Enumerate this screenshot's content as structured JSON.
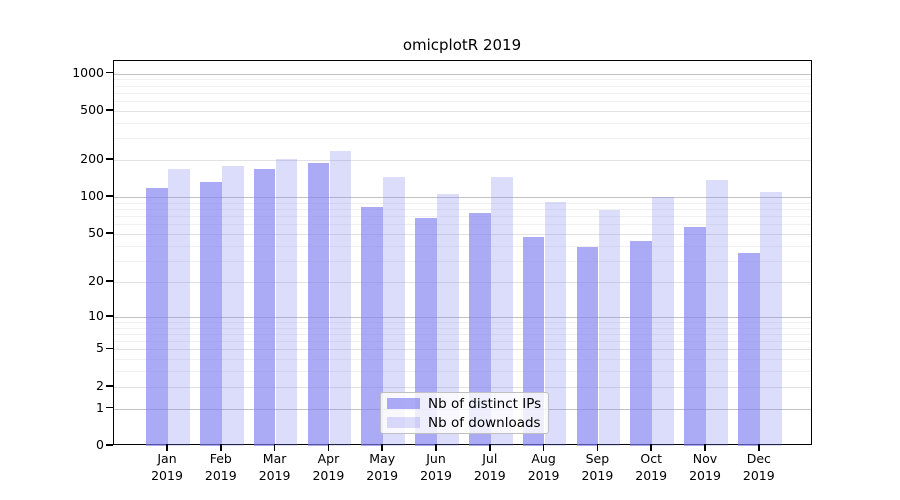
{
  "chart_data": {
    "type": "bar",
    "title": "omicplotR 2019",
    "xlabel": "",
    "ylabel": "",
    "categories": [
      "Jan 2019",
      "Feb 2019",
      "Mar 2019",
      "Apr 2019",
      "May 2019",
      "Jun 2019",
      "Jul 2019",
      "Aug 2019",
      "Sep 2019",
      "Oct 2019",
      "Nov 2019",
      "Dec 2019"
    ],
    "series": [
      {
        "name": "Nb of distinct IPs",
        "color": "#8080F0A8",
        "values": [
          118,
          134,
          168,
          191,
          83,
          68,
          75,
          47,
          39,
          44,
          57,
          35
        ]
      },
      {
        "name": "Nb of downloads",
        "color": "#8080F047",
        "values": [
          168,
          181,
          206,
          239,
          147,
          106,
          146,
          92,
          79,
          101,
          137,
          110
        ]
      }
    ],
    "yscale": "log1p",
    "ylim": [
      0,
      1250
    ],
    "yticks": [
      0,
      1,
      2,
      5,
      10,
      20,
      50,
      100,
      200,
      500,
      1000
    ],
    "grid": {
      "on": true,
      "power10_color": "#c3c3c3",
      "labeled_color": "#e2e2e2",
      "minor_color": "#f0f0f0",
      "minor_values": [
        3,
        4,
        6,
        7,
        8,
        9,
        30,
        40,
        60,
        70,
        80,
        90,
        300,
        400,
        600,
        700,
        800,
        900
      ]
    },
    "legend": {
      "position": "inside-bottom-center"
    },
    "axis_color": "#000000",
    "background_color": "#ffffff"
  }
}
